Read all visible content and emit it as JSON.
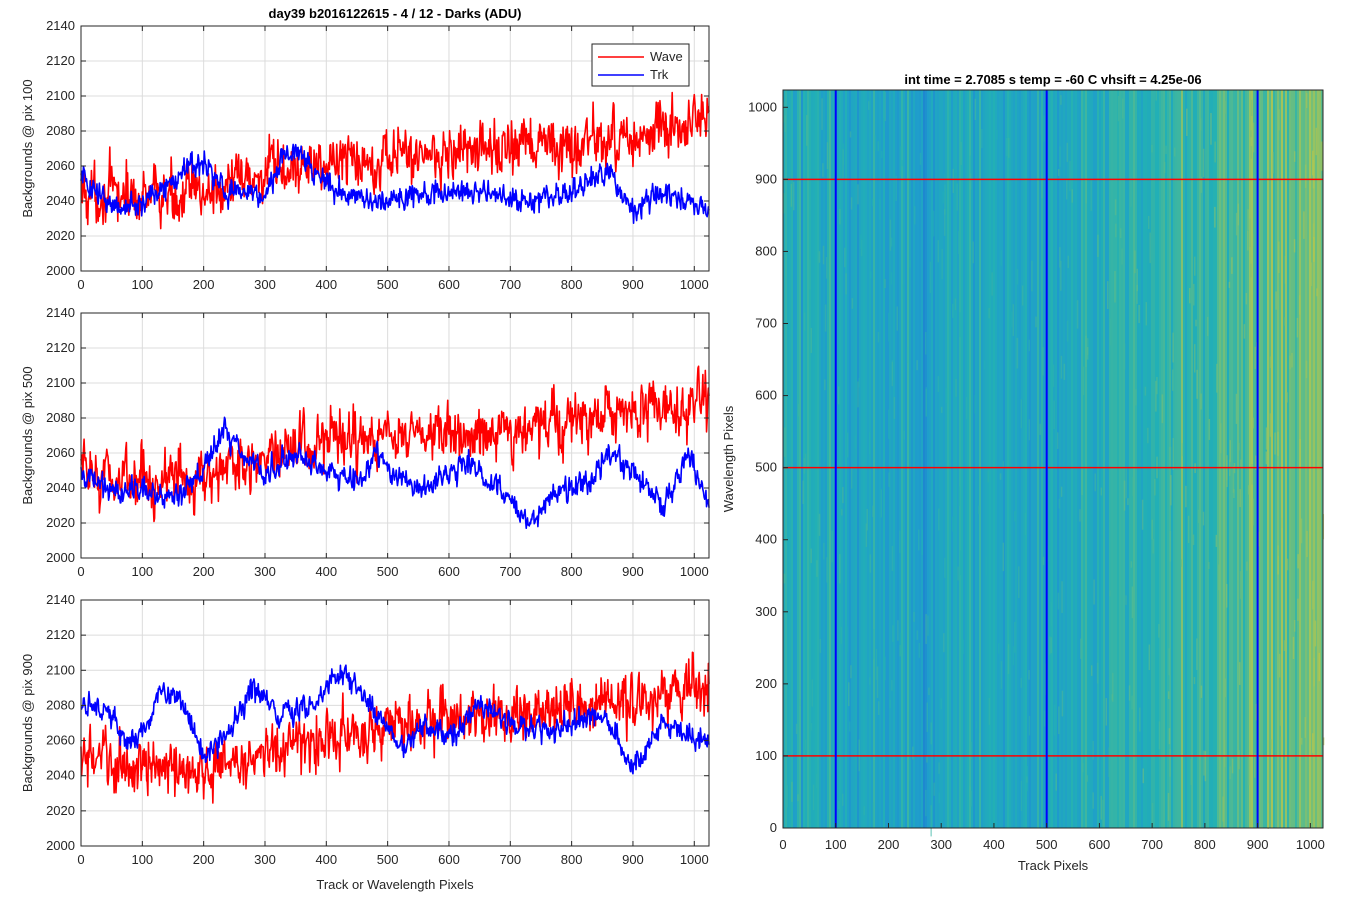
{
  "figure": {
    "left_title": "day39 b2016122615 - 4 / 12 - Darks (ADU)",
    "right_title": "int time = 2.7085 s    temp = -60 C    vhsift = 4.25e-06"
  },
  "colors": {
    "wave": "#ff0000",
    "trk": "#0000ff",
    "image_low": "#1f8fd0",
    "image_mid": "#22a8b8",
    "image_high": "#c5c83c"
  },
  "chart_data": [
    {
      "type": "line",
      "title": "day39 b2016122615 - 4 / 12 - Darks (ADU)",
      "xlabel": "",
      "ylabel": "Backgrounds @ pix 100",
      "xlim": [
        0,
        1024
      ],
      "ylim": [
        2000,
        2140
      ],
      "xticks": [
        0,
        100,
        200,
        300,
        400,
        500,
        600,
        700,
        800,
        900,
        1000
      ],
      "yticks": [
        2000,
        2020,
        2040,
        2060,
        2080,
        2100,
        2120,
        2140
      ],
      "grid": true,
      "legend": {
        "position": "top-right",
        "entries": [
          "Wave",
          "Trk"
        ]
      },
      "series": [
        {
          "name": "Wave",
          "color": "#ff0000",
          "noise": 14,
          "trend": [
            [
              0,
              2045
            ],
            [
              100,
              2042
            ],
            [
              200,
              2045
            ],
            [
              300,
              2055
            ],
            [
              400,
              2062
            ],
            [
              500,
              2066
            ],
            [
              600,
              2068
            ],
            [
              700,
              2070
            ],
            [
              800,
              2072
            ],
            [
              900,
              2076
            ],
            [
              1024,
              2085
            ]
          ]
        },
        {
          "name": "Trk",
          "color": "#0000ff",
          "noise": 6,
          "trend": [
            [
              0,
              2055
            ],
            [
              50,
              2035
            ],
            [
              100,
              2040
            ],
            [
              150,
              2050
            ],
            [
              180,
              2060
            ],
            [
              200,
              2060
            ],
            [
              240,
              2045
            ],
            [
              300,
              2045
            ],
            [
              345,
              2072
            ],
            [
              380,
              2058
            ],
            [
              420,
              2045
            ],
            [
              480,
              2040
            ],
            [
              540,
              2043
            ],
            [
              600,
              2045
            ],
            [
              640,
              2045
            ],
            [
              700,
              2040
            ],
            [
              760,
              2042
            ],
            [
              800,
              2045
            ],
            [
              860,
              2058
            ],
            [
              900,
              2035
            ],
            [
              950,
              2045
            ],
            [
              1024,
              2035
            ]
          ]
        }
      ]
    },
    {
      "type": "line",
      "xlabel": "",
      "ylabel": "Backgrounds @ pix 500",
      "xlim": [
        0,
        1024
      ],
      "ylim": [
        2000,
        2140
      ],
      "xticks": [
        0,
        100,
        200,
        300,
        400,
        500,
        600,
        700,
        800,
        900,
        1000
      ],
      "yticks": [
        2000,
        2020,
        2040,
        2060,
        2080,
        2100,
        2120,
        2140
      ],
      "grid": true,
      "series": [
        {
          "name": "Wave",
          "color": "#ff0000",
          "noise": 14,
          "trend": [
            [
              0,
              2048
            ],
            [
              100,
              2045
            ],
            [
              200,
              2047
            ],
            [
              300,
              2058
            ],
            [
              400,
              2065
            ],
            [
              500,
              2068
            ],
            [
              600,
              2070
            ],
            [
              700,
              2073
            ],
            [
              800,
              2078
            ],
            [
              900,
              2082
            ],
            [
              1024,
              2090
            ]
          ]
        },
        {
          "name": "Trk",
          "color": "#0000ff",
          "noise": 6,
          "trend": [
            [
              0,
              2045
            ],
            [
              50,
              2040
            ],
            [
              100,
              2038
            ],
            [
              150,
              2035
            ],
            [
              200,
              2048
            ],
            [
              230,
              2075
            ],
            [
              260,
              2062
            ],
            [
              300,
              2048
            ],
            [
              360,
              2060
            ],
            [
              400,
              2048
            ],
            [
              460,
              2042
            ],
            [
              480,
              2060
            ],
            [
              520,
              2045
            ],
            [
              560,
              2040
            ],
            [
              630,
              2055
            ],
            [
              680,
              2040
            ],
            [
              730,
              2020
            ],
            [
              780,
              2038
            ],
            [
              830,
              2045
            ],
            [
              860,
              2060
            ],
            [
              900,
              2050
            ],
            [
              950,
              2028
            ],
            [
              990,
              2060
            ],
            [
              1024,
              2030
            ]
          ]
        }
      ]
    },
    {
      "type": "line",
      "xlabel": "Track or Wavelength Pixels",
      "ylabel": "Backgrounds @ pix 900",
      "xlim": [
        0,
        1024
      ],
      "ylim": [
        2000,
        2140
      ],
      "xticks": [
        0,
        100,
        200,
        300,
        400,
        500,
        600,
        700,
        800,
        900,
        1000
      ],
      "yticks": [
        2000,
        2020,
        2040,
        2060,
        2080,
        2100,
        2120,
        2140
      ],
      "grid": true,
      "series": [
        {
          "name": "Wave",
          "color": "#ff0000",
          "noise": 14,
          "trend": [
            [
              0,
              2050
            ],
            [
              100,
              2045
            ],
            [
              200,
              2043
            ],
            [
              300,
              2052
            ],
            [
              400,
              2062
            ],
            [
              500,
              2068
            ],
            [
              600,
              2072
            ],
            [
              700,
              2074
            ],
            [
              800,
              2078
            ],
            [
              900,
              2083
            ],
            [
              1024,
              2090
            ]
          ]
        },
        {
          "name": "Trk",
          "color": "#0000ff",
          "noise": 6,
          "trend": [
            [
              0,
              2078
            ],
            [
              40,
              2080
            ],
            [
              70,
              2060
            ],
            [
              100,
              2065
            ],
            [
              130,
              2088
            ],
            [
              160,
              2085
            ],
            [
              200,
              2050
            ],
            [
              230,
              2060
            ],
            [
              280,
              2090
            ],
            [
              320,
              2075
            ],
            [
              380,
              2080
            ],
            [
              420,
              2100
            ],
            [
              470,
              2082
            ],
            [
              520,
              2055
            ],
            [
              560,
              2070
            ],
            [
              600,
              2062
            ],
            [
              650,
              2080
            ],
            [
              700,
              2070
            ],
            [
              760,
              2065
            ],
            [
              800,
              2070
            ],
            [
              850,
              2075
            ],
            [
              900,
              2045
            ],
            [
              950,
              2070
            ],
            [
              1000,
              2060
            ],
            [
              1024,
              2060
            ]
          ]
        }
      ]
    },
    {
      "type": "heatmap",
      "title": "int time = 2.7085 s    temp = -60 C    vhsift = 4.25e-06",
      "xlabel": "Track Pixels",
      "ylabel": "Wavelength Pixels",
      "xlim": [
        0,
        1024
      ],
      "ylim": [
        0,
        1024
      ],
      "xticks": [
        0,
        100,
        200,
        300,
        400,
        500,
        600,
        700,
        800,
        900,
        1000
      ],
      "yticks": [
        0,
        100,
        200,
        300,
        400,
        500,
        600,
        700,
        800,
        900,
        1000
      ],
      "grid": false,
      "value_trend_by_track_pixel": [
        [
          0,
          0.35
        ],
        [
          200,
          0.25
        ],
        [
          500,
          0.3
        ],
        [
          800,
          0.5
        ],
        [
          950,
          0.62
        ],
        [
          1024,
          0.75
        ]
      ],
      "vertical_markers": {
        "color": "#0000ff",
        "x": [
          100,
          500,
          900
        ]
      },
      "horizontal_markers": {
        "color": "#ff0000",
        "y": [
          100,
          500,
          900
        ]
      }
    }
  ]
}
